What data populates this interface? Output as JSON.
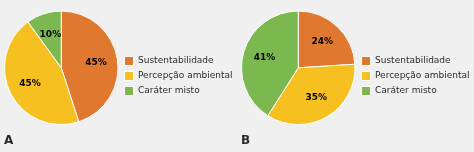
{
  "chart_data": [
    {
      "type": "pie",
      "title": "A",
      "categories": [
        "Sustentabilidade",
        "Percepção ambiental",
        "Caráter misto"
      ],
      "values": [
        45,
        45,
        10
      ],
      "value_labels": [
        "45%",
        "45%",
        "10%"
      ],
      "colors": [
        "#E07830",
        "#F5C020",
        "#7CB850"
      ],
      "data_labels": true,
      "legend": "right"
    },
    {
      "type": "pie",
      "title": "B",
      "categories": [
        "Sustentabilidade",
        "Percepção ambiental",
        "Caráter misto"
      ],
      "values": [
        24,
        35,
        41
      ],
      "value_labels": [
        "24%",
        "35%",
        "41%"
      ],
      "colors": [
        "#E07830",
        "#F5C020",
        "#7CB850"
      ],
      "data_labels": true,
      "legend": "right"
    }
  ]
}
